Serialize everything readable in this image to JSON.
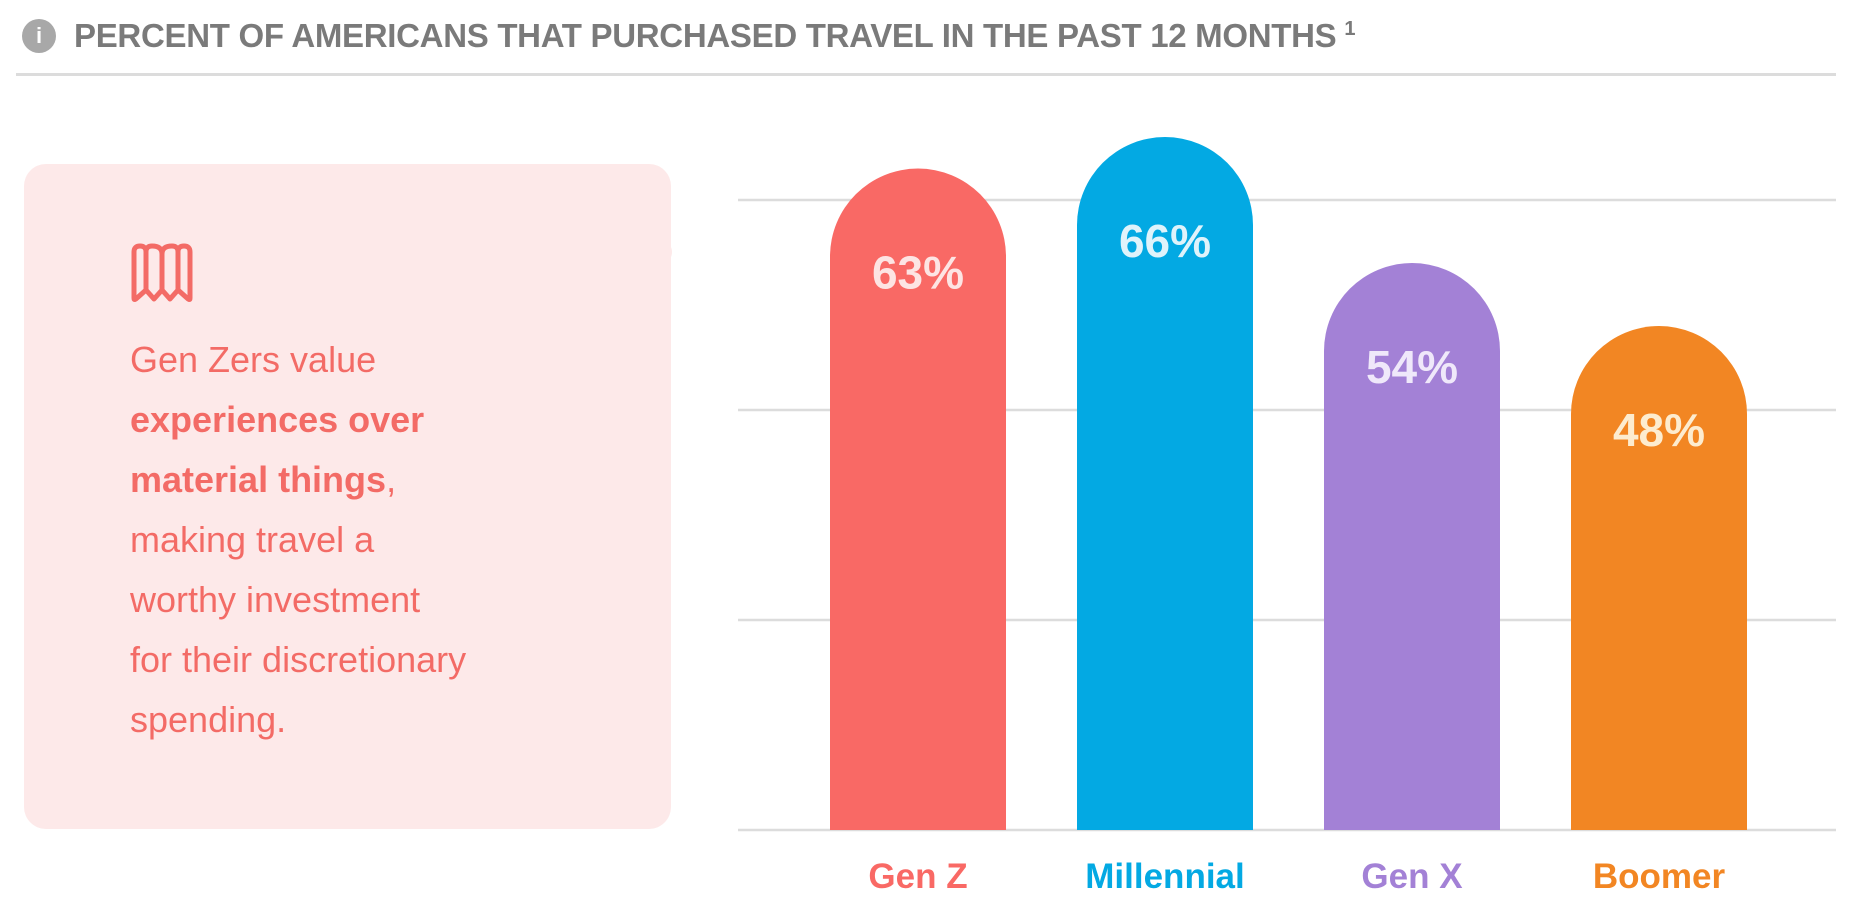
{
  "header": {
    "icon": "info-icon",
    "title": "PERCENT OF AMERICANS THAT PURCHASED TRAVEL IN THE PAST 12 MONTHS",
    "footnote": "1"
  },
  "callout": {
    "icon": "map-icon",
    "color": "#f36b66",
    "background": "#fde9e9",
    "lines": [
      {
        "text": "Gen Zers value",
        "bold": ""
      },
      {
        "text": "",
        "bold": "experiences over"
      },
      {
        "text": ",",
        "bold": "material things"
      },
      {
        "text": "making travel a",
        "bold": ""
      },
      {
        "text": "worthy investment",
        "bold": ""
      },
      {
        "text": "for their discretionary",
        "bold": ""
      },
      {
        "text": "spending.",
        "bold": ""
      }
    ]
  },
  "chart_data": {
    "type": "bar",
    "title": "PERCENT OF AMERICANS THAT PURCHASED TRAVEL IN THE PAST 12 MONTHS",
    "categories": [
      "Gen Z",
      "Millennial",
      "Gen X",
      "Boomer"
    ],
    "values": [
      63,
      66,
      54,
      48
    ],
    "data_labels": [
      "63%",
      "66%",
      "54%",
      "48%"
    ],
    "colors": [
      "#f96965",
      "#03a9e3",
      "#a381d6",
      "#f28623"
    ],
    "label_colors": [
      "#fde4e3",
      "#dff3fb",
      "#efe8fa",
      "#fdeccf"
    ],
    "ylim": [
      0,
      70
    ],
    "gridlines": [
      0,
      20,
      40,
      60
    ],
    "grid": true,
    "xlabel": "",
    "ylabel": ""
  }
}
